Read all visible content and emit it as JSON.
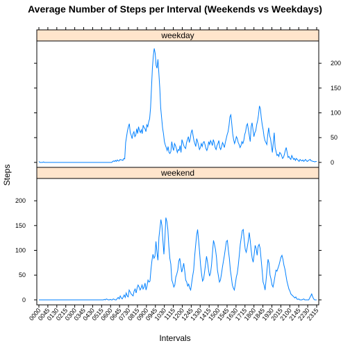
{
  "chart_data": {
    "type": "line",
    "title": "Average Number of Steps per Interval (Weekends vs Weekdays)",
    "xlabel": "Intervals",
    "ylabel": "Steps",
    "ylim": [
      -10,
      245
    ],
    "y_ticks": [
      0,
      50,
      100,
      150,
      200
    ],
    "x_tick_labels": [
      "0000",
      "0045",
      "0130",
      "0215",
      "0300",
      "0345",
      "0430",
      "0515",
      "0600",
      "0645",
      "0730",
      "0815",
      "0900",
      "0945",
      "1030",
      "1115",
      "1200",
      "1245",
      "1330",
      "1415",
      "1500",
      "1545",
      "1630",
      "1715",
      "1800",
      "1845",
      "1930",
      "2015",
      "2100",
      "2145",
      "2230",
      "2315"
    ],
    "panels": [
      {
        "name": "weekday",
        "values": [
          2,
          0,
          0,
          0,
          0,
          1,
          0,
          0,
          0,
          0,
          0,
          0,
          0,
          0,
          0,
          0,
          0,
          0,
          0,
          0,
          0,
          0,
          0,
          0,
          0,
          0,
          0,
          0,
          0,
          0,
          0,
          0,
          0,
          0,
          0,
          0,
          0,
          0,
          0,
          0,
          0,
          0,
          0,
          0,
          0,
          0,
          0,
          0,
          0,
          0,
          0,
          0,
          0,
          0,
          0,
          0,
          0,
          0,
          0,
          0,
          0,
          0,
          0,
          0,
          0,
          0,
          0,
          0,
          0,
          0,
          0,
          0,
          0,
          0,
          0,
          0,
          0,
          0,
          0,
          0,
          2,
          3,
          2,
          4,
          2,
          5,
          3,
          3,
          6,
          5,
          5,
          4,
          8,
          7,
          40,
          52,
          64,
          72,
          78,
          60,
          55,
          48,
          58,
          62,
          52,
          55,
          68,
          58,
          72,
          64,
          60,
          66,
          58,
          75,
          70,
          68,
          62,
          76,
          72,
          82,
          88,
          110,
          150,
          190,
          215,
          230,
          220,
          196,
          190,
          208,
          180,
          150,
          110,
          90,
          70,
          58,
          42,
          35,
          30,
          24,
          32,
          20,
          18,
          22,
          42,
          30,
          24,
          38,
          34,
          28,
          20,
          26,
          24,
          34,
          20,
          46,
          40,
          34,
          30,
          28,
          40,
          46,
          52,
          40,
          48,
          60,
          66,
          55,
          44,
          38,
          32,
          48,
          42,
          34,
          26,
          30,
          38,
          32,
          40,
          42,
          36,
          28,
          24,
          30,
          42,
          36,
          44,
          40,
          34,
          46,
          40,
          30,
          26,
          34,
          38,
          44,
          30,
          26,
          32,
          40,
          36,
          30,
          40,
          48,
          56,
          62,
          74,
          92,
          96,
          78,
          58,
          46,
          38,
          44,
          52,
          48,
          40,
          36,
          30,
          34,
          42,
          38,
          44,
          56,
          62,
          74,
          78,
          66,
          54,
          42,
          72,
          80,
          66,
          52,
          60,
          64,
          76,
          84,
          96,
          114,
          108,
          90,
          76,
          66,
          52,
          44,
          40,
          36,
          56,
          70,
          54,
          48,
          34,
          20,
          40,
          60,
          30,
          22,
          14,
          16,
          12,
          20,
          18,
          14,
          8,
          10,
          16,
          24,
          30,
          20,
          10,
          12,
          8,
          6,
          14,
          10,
          6,
          8,
          4,
          8,
          6,
          4,
          2,
          6,
          4,
          3,
          5,
          2,
          4,
          6,
          3,
          2,
          4,
          5,
          6,
          3,
          3,
          2,
          2,
          1,
          2,
          2
        ]
      },
      {
        "name": "weekend",
        "values": [
          0,
          0,
          0,
          0,
          0,
          0,
          0,
          0,
          0,
          0,
          0,
          0,
          0,
          0,
          0,
          0,
          0,
          0,
          0,
          0,
          0,
          0,
          0,
          0,
          0,
          0,
          0,
          0,
          0,
          0,
          0,
          0,
          0,
          0,
          0,
          0,
          0,
          0,
          0,
          0,
          0,
          0,
          0,
          0,
          0,
          0,
          0,
          0,
          0,
          0,
          0,
          0,
          0,
          0,
          0,
          0,
          0,
          0,
          0,
          0,
          0,
          0,
          0,
          0,
          0,
          0,
          1,
          0,
          2,
          1,
          0,
          0,
          1,
          0,
          0,
          2,
          1,
          0,
          0,
          3,
          5,
          2,
          8,
          4,
          2,
          6,
          10,
          5,
          14,
          8,
          6,
          20,
          16,
          12,
          10,
          8,
          18,
          22,
          14,
          24,
          30,
          26,
          20,
          24,
          30,
          22,
          26,
          34,
          20,
          28,
          40,
          36,
          38,
          62,
          80,
          92,
          84,
          88,
          118,
          96,
          80,
          126,
          144,
          162,
          150,
          120,
          92,
          124,
          166,
          158,
          142,
          108,
          84,
          72,
          40,
          34,
          26,
          30,
          46,
          52,
          60,
          78,
          84,
          70,
          56,
          64,
          74,
          58,
          40,
          36,
          28,
          32,
          24,
          20,
          34,
          48,
          60,
          88,
          110,
          130,
          142,
          120,
          96,
          70,
          52,
          38,
          42,
          56,
          72,
          88,
          76,
          60,
          48,
          54,
          70,
          96,
          120,
          112,
          102,
          86,
          60,
          48,
          36,
          40,
          52,
          66,
          78,
          90,
          104,
          118,
          120,
          100,
          84,
          60,
          46,
          30,
          24,
          20,
          32,
          46,
          54,
          70,
          90,
          112,
          126,
          140,
          142,
          120,
          102,
          96,
          106,
          118,
          136,
          120,
          100,
          84,
          76,
          92,
          110,
          104,
          90,
          108,
          112,
          104,
          82,
          60,
          36,
          30,
          20,
          40,
          62,
          82,
          74,
          50,
          42,
          30,
          26,
          36,
          48,
          60,
          58,
          64,
          70,
          78,
          86,
          90,
          82,
          70,
          62,
          50,
          38,
          30,
          22,
          18,
          12,
          10,
          8,
          6,
          4,
          6,
          2,
          1,
          2,
          0,
          0,
          0,
          1,
          2,
          0,
          0,
          0,
          0,
          0,
          4,
          8,
          12,
          6,
          2,
          0,
          0,
          0
        ]
      }
    ]
  }
}
